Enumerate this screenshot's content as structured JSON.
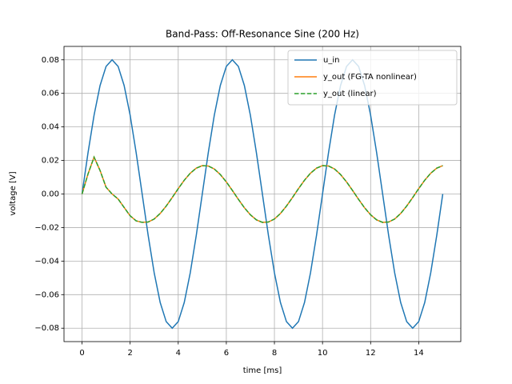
{
  "chart_data": {
    "type": "line",
    "title": "Band-Pass: Off-Resonance Sine (200 Hz)",
    "x_label": "time [ms]",
    "y_label": "voltage [V]",
    "x": [
      0,
      0.25,
      0.5,
      0.75,
      1,
      1.25,
      1.5,
      1.75,
      2,
      2.25,
      2.5,
      2.75,
      3,
      3.25,
      3.5,
      3.75,
      4,
      4.25,
      4.5,
      4.75,
      5,
      5.25,
      5.5,
      5.75,
      6,
      6.25,
      6.5,
      6.75,
      7,
      7.25,
      7.5,
      7.75,
      8,
      8.25,
      8.5,
      8.75,
      9,
      9.25,
      9.5,
      9.75,
      10,
      10.25,
      10.5,
      10.75,
      11,
      11.25,
      11.5,
      11.75,
      12,
      12.25,
      12.5,
      12.75,
      13,
      13.25,
      13.5,
      13.75,
      14,
      14.25,
      14.5,
      14.75,
      15
    ],
    "series": [
      {
        "name": "u_in",
        "color": "#1f77b4",
        "linestyle": "solid",
        "values": [
          0,
          0.0247,
          0.047,
          0.0647,
          0.0761,
          0.08,
          0.0761,
          0.0647,
          0.047,
          0.0247,
          0,
          -0.0247,
          -0.047,
          -0.0647,
          -0.0761,
          -0.08,
          -0.0761,
          -0.0647,
          -0.047,
          -0.0247,
          0,
          0.0247,
          0.047,
          0.0647,
          0.0761,
          0.08,
          0.0761,
          0.0647,
          0.047,
          0.0247,
          0,
          -0.0247,
          -0.047,
          -0.0647,
          -0.0761,
          -0.08,
          -0.0761,
          -0.0647,
          -0.047,
          -0.0247,
          0,
          0.0247,
          0.047,
          0.0647,
          0.0761,
          0.08,
          0.0761,
          0.0647,
          0.047,
          0.0247,
          0,
          -0.0247,
          -0.047,
          -0.0647,
          -0.0761,
          -0.08,
          -0.0761,
          -0.0647,
          -0.047,
          -0.0247,
          0
        ]
      },
      {
        "name": "y_out (FG-TA nonlinear)",
        "color": "#ff7f0e",
        "linestyle": "solid",
        "values": [
          0,
          0.012,
          0.022,
          0.014,
          0.004,
          0,
          -0.003,
          -0.008,
          -0.013,
          -0.016,
          -0.0169,
          -0.0167,
          -0.0149,
          -0.0116,
          -0.0072,
          -0.0021,
          0.0032,
          0.0082,
          0.0124,
          0.0154,
          0.0169,
          0.0167,
          0.0149,
          0.0116,
          0.0072,
          0.0021,
          -0.0032,
          -0.0082,
          -0.0124,
          -0.0154,
          -0.0169,
          -0.0167,
          -0.0149,
          -0.0116,
          -0.0072,
          -0.0021,
          0.0032,
          0.0082,
          0.0124,
          0.0154,
          0.0169,
          0.0167,
          0.0149,
          0.0116,
          0.0072,
          0.0021,
          -0.0032,
          -0.0082,
          -0.0124,
          -0.0154,
          -0.0169,
          -0.0167,
          -0.0149,
          -0.0116,
          -0.0072,
          -0.0021,
          0.0032,
          0.0082,
          0.0124,
          0.0154,
          0.0169
        ]
      },
      {
        "name": "y_out (linear)",
        "color": "#2ca02c",
        "linestyle": "dashed",
        "values": [
          0,
          0.012,
          0.022,
          0.014,
          0.004,
          0,
          -0.003,
          -0.008,
          -0.013,
          -0.016,
          -0.0169,
          -0.0167,
          -0.0149,
          -0.0116,
          -0.0072,
          -0.0021,
          0.0032,
          0.0082,
          0.0124,
          0.0154,
          0.0169,
          0.0167,
          0.0149,
          0.0116,
          0.0072,
          0.0021,
          -0.0032,
          -0.0082,
          -0.0124,
          -0.0154,
          -0.0169,
          -0.0167,
          -0.0149,
          -0.0116,
          -0.0072,
          -0.0021,
          0.0032,
          0.0082,
          0.0124,
          0.0154,
          0.0169,
          0.0167,
          0.0149,
          0.0116,
          0.0072,
          0.0021,
          -0.0032,
          -0.0082,
          -0.0124,
          -0.0154,
          -0.0169,
          -0.0167,
          -0.0149,
          -0.0116,
          -0.0072,
          -0.0021,
          0.0032,
          0.0082,
          0.0124,
          0.0154,
          0.0169
        ]
      }
    ],
    "xlim": [
      -0.75,
      15.75
    ],
    "xticks": [
      0,
      2,
      4,
      6,
      8,
      10,
      12,
      14
    ],
    "ylim": [
      -0.088,
      0.088
    ],
    "yticks": [
      {
        "value": -0.08,
        "label": "−0.08"
      },
      {
        "value": -0.06,
        "label": "−0.06"
      },
      {
        "value": -0.04,
        "label": "−0.04"
      },
      {
        "value": -0.02,
        "label": "−0.02"
      },
      {
        "value": 0,
        "label": "0.00"
      },
      0.02,
      0.04,
      0.06,
      0.08
    ],
    "grid": true,
    "legend": "upper right"
  }
}
